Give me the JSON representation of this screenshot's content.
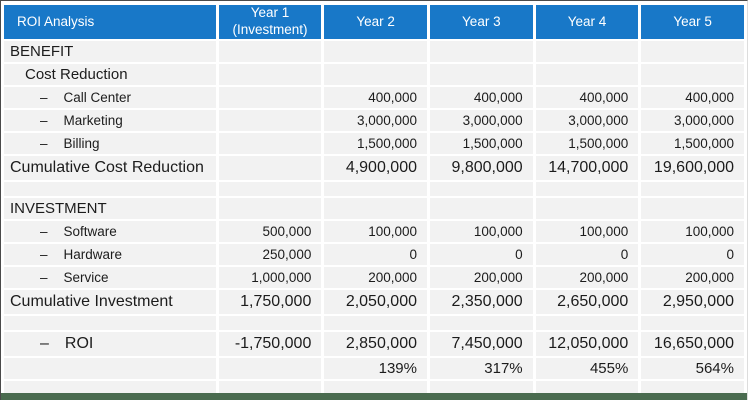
{
  "chart_data": {
    "type": "table",
    "title": "ROI Analysis",
    "dash_glyph": "–",
    "columns": [
      {
        "label": "ROI Analysis",
        "sublabel": ""
      },
      {
        "label": "Year 1",
        "sublabel": "(Investment)"
      },
      {
        "label": "Year 2",
        "sublabel": ""
      },
      {
        "label": "Year 3",
        "sublabel": ""
      },
      {
        "label": "Year 4",
        "sublabel": ""
      },
      {
        "label": "Year 5",
        "sublabel": ""
      }
    ],
    "rows": [
      {
        "label": "BENEFIT",
        "style": "section",
        "dash": false,
        "values": [
          "",
          "",
          "",
          "",
          ""
        ]
      },
      {
        "label": "Cost Reduction",
        "style": "subsection",
        "dash": false,
        "values": [
          "",
          "",
          "",
          "",
          ""
        ]
      },
      {
        "label": "Call Center",
        "style": "detail",
        "dash": true,
        "values": [
          "",
          "400,000",
          "400,000",
          "400,000",
          "400,000"
        ]
      },
      {
        "label": "Marketing",
        "style": "detail",
        "dash": true,
        "values": [
          "",
          "3,000,000",
          "3,000,000",
          "3,000,000",
          "3,000,000"
        ]
      },
      {
        "label": "Billing",
        "style": "detail",
        "dash": true,
        "values": [
          "",
          "1,500,000",
          "1,500,000",
          "1,500,000",
          "1,500,000"
        ]
      },
      {
        "label": "Cumulative Cost Reduction",
        "style": "total",
        "dash": false,
        "values": [
          "",
          "4,900,000",
          "9,800,000",
          "14,700,000",
          "19,600,000"
        ]
      },
      {
        "label": "",
        "style": "spacer",
        "dash": false,
        "values": [
          "",
          "",
          "",
          "",
          ""
        ]
      },
      {
        "label": "INVESTMENT",
        "style": "section",
        "dash": false,
        "values": [
          "",
          "",
          "",
          "",
          ""
        ]
      },
      {
        "label": "Software",
        "style": "detail",
        "dash": true,
        "values": [
          "500,000",
          "100,000",
          "100,000",
          "100,000",
          "100,000"
        ]
      },
      {
        "label": "Hardware",
        "style": "detail",
        "dash": true,
        "values": [
          "250,000",
          "0",
          "0",
          "0",
          "0"
        ]
      },
      {
        "label": "Service",
        "style": "detail",
        "dash": true,
        "values": [
          "1,000,000",
          "200,000",
          "200,000",
          "200,000",
          "200,000"
        ]
      },
      {
        "label": "Cumulative Investment",
        "style": "total",
        "dash": false,
        "values": [
          "1,750,000",
          "2,050,000",
          "2,350,000",
          "2,650,000",
          "2,950,000"
        ]
      },
      {
        "label": "",
        "style": "spacer",
        "dash": false,
        "values": [
          "",
          "",
          "",
          "",
          ""
        ]
      },
      {
        "label": "ROI",
        "style": "total-dash",
        "dash": true,
        "values": [
          "-1,750,000",
          "2,850,000",
          "7,450,000",
          "12,050,000",
          "16,650,000"
        ]
      },
      {
        "label": "",
        "style": "percent",
        "dash": false,
        "values": [
          "",
          "139%",
          "317%",
          "455%",
          "564%"
        ]
      },
      {
        "label": "",
        "style": "spacer",
        "dash": false,
        "values": [
          "",
          "",
          "",
          "",
          ""
        ]
      }
    ],
    "colors": {
      "header_bg": "#1878C8",
      "header_text": "#FFFFFF",
      "row_bg": "#F2F2F2",
      "text": "#1C1C1C",
      "bottom_bar": "#4A6B4F"
    }
  }
}
